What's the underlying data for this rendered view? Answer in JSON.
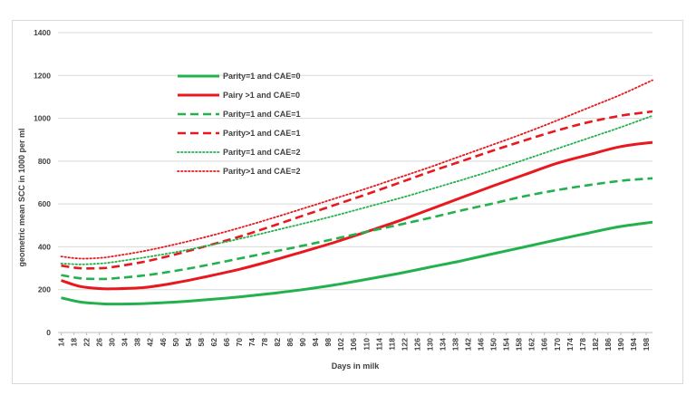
{
  "chart_data": {
    "type": "line",
    "title": "",
    "xlabel": "Days in milk",
    "ylabel": "geometric mean SCC in 1000 per ml",
    "ylim": [
      0,
      1400
    ],
    "yticks": [
      0,
      200,
      400,
      600,
      800,
      1000,
      1200,
      1400
    ],
    "xticks": [
      14,
      18,
      22,
      26,
      30,
      34,
      38,
      42,
      46,
      50,
      54,
      58,
      62,
      66,
      70,
      74,
      78,
      82,
      86,
      90,
      94,
      98,
      102,
      106,
      110,
      114,
      118,
      122,
      126,
      130,
      134,
      138,
      142,
      146,
      150,
      154,
      158,
      162,
      166,
      170,
      174,
      178,
      182,
      186,
      190,
      194,
      198
    ],
    "xlim": [
      13,
      200
    ],
    "gridlines": "horizontal",
    "legend_position": "upper-left inside plot",
    "series": [
      {
        "name": "Parity=1 and CAE=0",
        "color": "#22b14c",
        "style": "solid",
        "x": [
          14,
          20,
          26,
          30,
          40,
          50,
          60,
          70,
          80,
          90,
          100,
          110,
          120,
          130,
          140,
          150,
          160,
          170,
          180,
          190,
          200
        ],
        "y": [
          162,
          142,
          135,
          133,
          135,
          142,
          153,
          166,
          182,
          200,
          222,
          248,
          275,
          305,
          335,
          368,
          400,
          433,
          465,
          495,
          515
        ]
      },
      {
        "name": "Pairy >1 and CAE=0",
        "color": "#e8191e",
        "style": "solid",
        "x": [
          14,
          20,
          26,
          30,
          40,
          50,
          60,
          70,
          80,
          90,
          100,
          110,
          120,
          130,
          140,
          150,
          160,
          170,
          180,
          190,
          200
        ],
        "y": [
          243,
          215,
          205,
          204,
          210,
          232,
          262,
          295,
          334,
          377,
          421,
          470,
          520,
          575,
          630,
          685,
          738,
          790,
          830,
          868,
          888
        ]
      },
      {
        "name": "Parity=1 and CAE=1",
        "color": "#22b14c",
        "style": "dashed",
        "x": [
          14,
          20,
          26,
          30,
          40,
          50,
          60,
          70,
          80,
          90,
          100,
          110,
          120,
          130,
          140,
          150,
          160,
          170,
          180,
          190,
          200
        ],
        "y": [
          268,
          253,
          250,
          252,
          266,
          288,
          315,
          345,
          375,
          405,
          437,
          470,
          502,
          535,
          570,
          603,
          637,
          665,
          688,
          708,
          720
        ]
      },
      {
        "name": "Parity>1 and CAE=1",
        "color": "#e8191e",
        "style": "dashed",
        "x": [
          14,
          20,
          26,
          30,
          40,
          50,
          60,
          70,
          80,
          90,
          100,
          110,
          120,
          130,
          140,
          150,
          160,
          170,
          180,
          190,
          200
        ],
        "y": [
          312,
          300,
          300,
          305,
          330,
          365,
          405,
          447,
          495,
          545,
          595,
          645,
          697,
          750,
          800,
          850,
          898,
          943,
          982,
          1012,
          1032
        ]
      },
      {
        "name": "Parity=1 and CAE=2",
        "color": "#22b14c",
        "style": "dotted",
        "x": [
          14,
          20,
          26,
          30,
          40,
          50,
          60,
          70,
          80,
          90,
          100,
          110,
          120,
          130,
          140,
          150,
          160,
          170,
          180,
          190,
          200
        ],
        "y": [
          322,
          318,
          322,
          328,
          350,
          375,
          405,
          437,
          472,
          508,
          545,
          585,
          625,
          668,
          712,
          758,
          808,
          858,
          908,
          958,
          1012
        ]
      },
      {
        "name": "Parity>1 and CAE=2",
        "color": "#e8191e",
        "style": "dotted",
        "x": [
          14,
          20,
          26,
          30,
          40,
          50,
          60,
          70,
          80,
          90,
          100,
          110,
          120,
          130,
          140,
          150,
          160,
          170,
          180,
          190,
          200
        ],
        "y": [
          355,
          345,
          348,
          355,
          380,
          412,
          448,
          488,
          532,
          578,
          625,
          672,
          722,
          772,
          825,
          878,
          932,
          990,
          1050,
          1110,
          1178
        ]
      }
    ]
  }
}
